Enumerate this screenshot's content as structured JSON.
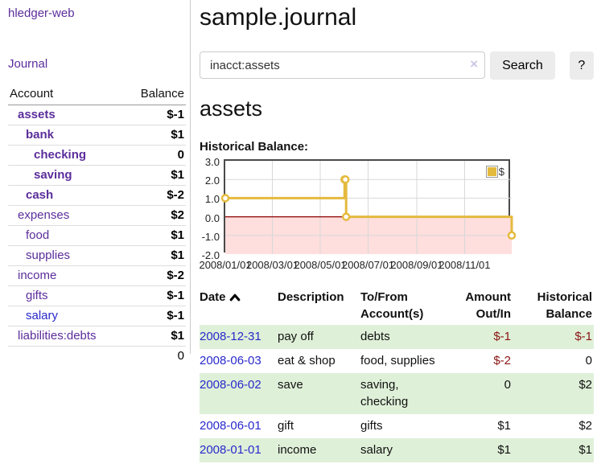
{
  "colors": {
    "purple": "#5b2d9b",
    "blue": "#2929cc",
    "negstrong": "#8b1414",
    "negsoft": "#b96f6f",
    "rowgreen": "#dff0d8",
    "gold": "#e4ba3e",
    "pink": "#ffdede",
    "zerored": "#8b0000",
    "text": "#111111"
  },
  "sidebar": {
    "app_title": "hledger-web",
    "nav": {
      "journal": "Journal"
    },
    "accounts_table": {
      "headers": {
        "account": "Account",
        "balance": "Balance"
      },
      "rows": [
        {
          "label": "assets",
          "balance": "$-1",
          "level": 0,
          "bold": true,
          "link": "purple",
          "bal": "negstrong"
        },
        {
          "label": "bank",
          "balance": "$1",
          "level": 1,
          "bold": true,
          "link": "purple",
          "bal": "pos"
        },
        {
          "label": "checking",
          "balance": "0",
          "level": 2,
          "bold": true,
          "link": "purple",
          "bal": "pos"
        },
        {
          "label": "saving",
          "balance": "$1",
          "level": 2,
          "bold": true,
          "link": "purple",
          "bal": "pos"
        },
        {
          "label": "cash",
          "balance": "$-2",
          "level": 1,
          "bold": true,
          "link": "purple",
          "bal": "negstrong"
        },
        {
          "label": "expenses",
          "balance": "$2",
          "level": 0,
          "bold": false,
          "link": "purple",
          "bal": "pos plain"
        },
        {
          "label": "food",
          "balance": "$1",
          "level": 1,
          "bold": false,
          "link": "purple",
          "bal": "pos plain"
        },
        {
          "label": "supplies",
          "balance": "$1",
          "level": 1,
          "bold": false,
          "link": "purple",
          "bal": "pos plain"
        },
        {
          "label": "income",
          "balance": "$-2",
          "level": 0,
          "bold": false,
          "link": "purple",
          "bal": "neg"
        },
        {
          "label": "gifts",
          "balance": "$-1",
          "level": 1,
          "bold": false,
          "link": "purple",
          "bal": "neg"
        },
        {
          "label": "salary",
          "balance": "$-1",
          "level": 1,
          "bold": false,
          "link": "blue",
          "bal": "neg"
        },
        {
          "label": "liabilities:debts",
          "balance": "$1",
          "level": 0,
          "bold": false,
          "link": "purple",
          "bal": "pos plain"
        }
      ],
      "total": "0"
    }
  },
  "header": {
    "title": "sample.journal"
  },
  "search": {
    "query": "inacct:assets",
    "clear_icon": "×",
    "search_label": "Search",
    "help_label": "?"
  },
  "account_page": {
    "heading": "assets",
    "chart_title": "Historical Balance:"
  },
  "chart_data": {
    "type": "line",
    "step": true,
    "title": "Historical Balance:",
    "legend": "$",
    "legend_position": "top-right",
    "x_range": [
      "2008-01-01",
      "2008-12-31"
    ],
    "ylim": [
      -2,
      3
    ],
    "y_ticks": [
      3.0,
      2.0,
      1.0,
      0.0,
      -1.0,
      -2.0
    ],
    "x_ticks": [
      "2008/01/01",
      "2008/03/01",
      "2008/05/01",
      "2008/07/01",
      "2008/09/01",
      "2008/11/01"
    ],
    "series": [
      {
        "name": "$",
        "points": [
          [
            "2008-01-01",
            1
          ],
          [
            "2008-06-01",
            2
          ],
          [
            "2008-06-02",
            2
          ],
          [
            "2008-06-03",
            0
          ],
          [
            "2008-12-31",
            -1
          ]
        ]
      }
    ],
    "line_color": "#e4ba3e",
    "marker_fill": "#ffffff",
    "negative_fill": "#ffdede",
    "zero_line_color": "#8b0000",
    "grid_color": "#d8d8d8"
  },
  "register_table": {
    "headers": {
      "date": "Date",
      "description": "Description",
      "accounts": "To/From Account(s)",
      "amount": "Amount Out/In",
      "balance": "Historical Balance"
    },
    "sort": {
      "column": "date",
      "direction": "asc"
    },
    "rows": [
      {
        "date": "2008-12-31",
        "description": "pay off",
        "accounts": "debts",
        "amount": "$-1",
        "amount_negative": true,
        "balance": "$-1",
        "balance_negative": true
      },
      {
        "date": "2008-06-03",
        "description": "eat & shop",
        "accounts": "food, supplies",
        "amount": "$-2",
        "amount_negative": true,
        "balance": "0",
        "balance_negative": false
      },
      {
        "date": "2008-06-02",
        "description": "save",
        "accounts": "saving, checking",
        "amount": "0",
        "amount_negative": false,
        "balance": "$2",
        "balance_negative": false
      },
      {
        "date": "2008-06-01",
        "description": "gift",
        "accounts": "gifts",
        "amount": "$1",
        "amount_negative": false,
        "balance": "$2",
        "balance_negative": false
      },
      {
        "date": "2008-01-01",
        "description": "income",
        "accounts": "salary",
        "amount": "$1",
        "amount_negative": false,
        "balance": "$1",
        "balance_negative": false
      }
    ]
  }
}
